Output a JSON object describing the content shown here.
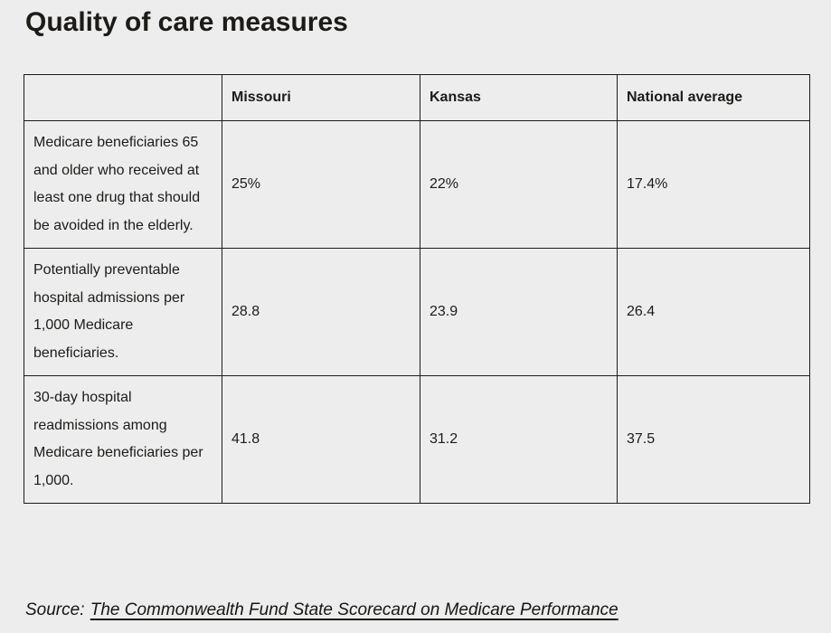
{
  "page": {
    "background_color": "#ededed",
    "text_color": "#1c1b18",
    "border_color": "#1d1c1a"
  },
  "chart_data": {
    "type": "table",
    "title": "Quality of care measures",
    "columns": [
      "",
      "Missouri",
      "Kansas",
      "National average"
    ],
    "rows": [
      {
        "measure": "Medicare beneficiaries 65 and older who received at least one drug that should be avoided in the elderly.",
        "values": [
          "25%",
          "22%",
          "17.4%"
        ]
      },
      {
        "measure": "Potentially preventable hospital admissions per 1,000 Medicare beneficiaries.",
        "values": [
          "28.8",
          "23.9",
          "26.4"
        ]
      },
      {
        "measure": "30-day hospital readmissions among Medicare beneficiaries per 1,000.",
        "values": [
          "41.8",
          "31.2",
          "37.5"
        ]
      }
    ]
  },
  "source": {
    "prefix": "Source:",
    "link_text": "The Commonwealth Fund State Scorecard on Medicare Performance"
  }
}
